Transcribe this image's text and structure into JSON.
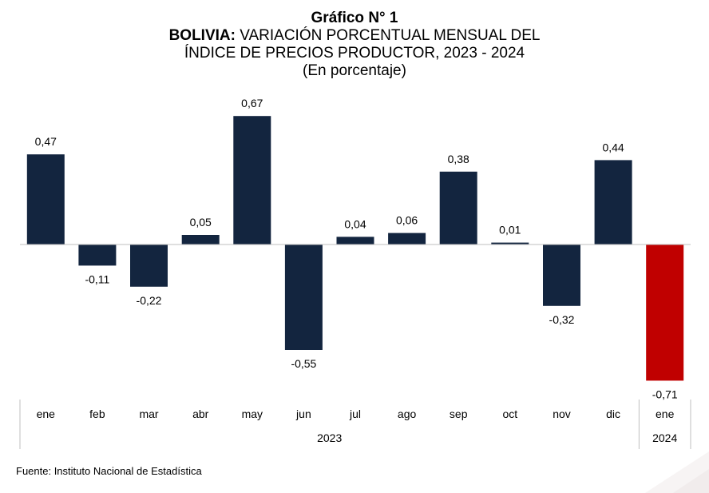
{
  "header": {
    "chart_number": "Gráfico N° 1",
    "title_bold": "BOLIVIA:",
    "title_rest": " VARIACIÓN PORCENTUAL MENSUAL DEL",
    "title_line2": "ÍNDICE DE PRECIOS PRODUCTOR, 2023 - 2024",
    "subtitle": "(En porcentaje)"
  },
  "source": "Fuente: Instituto Nacional de Estadística",
  "chart_data": {
    "type": "bar",
    "categories": [
      "ene",
      "feb",
      "mar",
      "abr",
      "may",
      "jun",
      "jul",
      "ago",
      "sep",
      "oct",
      "nov",
      "dic",
      "ene"
    ],
    "values": [
      0.47,
      -0.11,
      -0.22,
      0.05,
      0.67,
      -0.55,
      0.04,
      0.06,
      0.38,
      0.01,
      -0.32,
      0.44,
      -0.71
    ],
    "value_labels": [
      "0,47",
      "-0,11",
      "-0,22",
      "0,05",
      "0,67",
      "-0,55",
      "0,04",
      "0,06",
      "0,38",
      "0,01",
      "-0,32",
      "0,44",
      "-0,71"
    ],
    "years": [
      {
        "label": "2023",
        "start": 0,
        "end": 11
      },
      {
        "label": "2024",
        "start": 12,
        "end": 12
      }
    ],
    "colors": {
      "default": "#13253F",
      "highlight": "#C00000"
    },
    "highlight_index": 12,
    "ylim": [
      -0.78,
      0.78
    ],
    "grid": false
  }
}
